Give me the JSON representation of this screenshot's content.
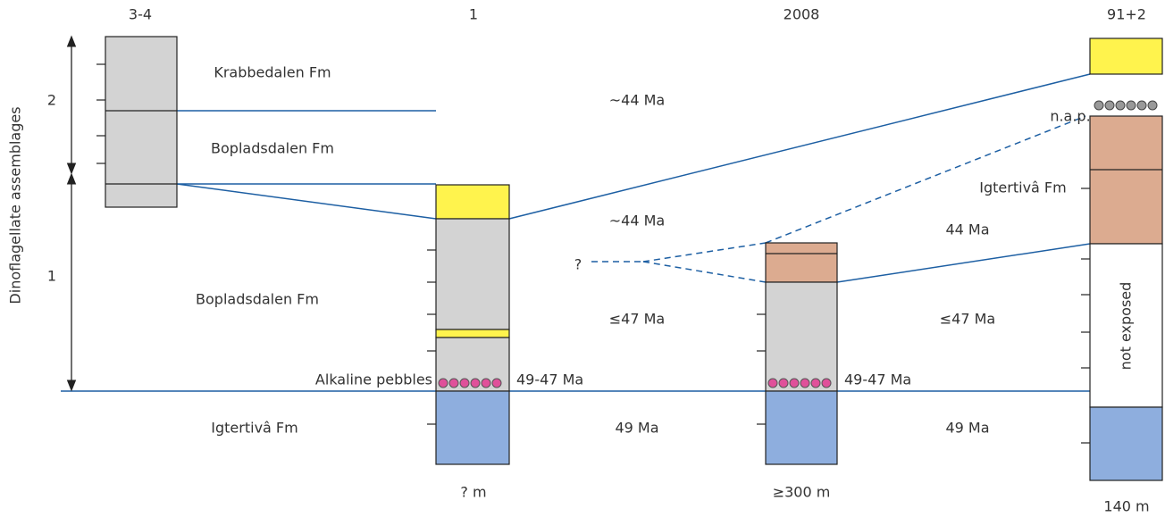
{
  "columns": {
    "c0": "3-4",
    "c1": "1",
    "c2": "2008",
    "c3": "91+2"
  },
  "axis": {
    "label": "Dinoflagellate assemblages",
    "upper": "2",
    "lower": "1"
  },
  "formations": {
    "krabbedalen": "Krabbedalen Fm",
    "bopladsdalen_upper": "Bopladsdalen Fm",
    "bopladsdalen_lower": "Bopladsdalen Fm",
    "alkaline": "Alkaline pebbles",
    "igtertiva_left": "Igtertivâ Fm",
    "igtertiva_right": "Igtertivâ Fm",
    "nap": "n.a.p.",
    "not_exposed": "not exposed"
  },
  "ages": {
    "a1": "~44 Ma",
    "a2": "~44 Ma",
    "a3": "≤47 Ma",
    "a4": "49-47 Ma",
    "a5": "49 Ma",
    "a6": "?",
    "a7": "44 Ma",
    "a8": "≤47 Ma",
    "a9": "49-47 Ma",
    "a10": "49 Ma"
  },
  "thickness": {
    "t1": "? m",
    "t2": "≥300 m",
    "t3": "140 m"
  }
}
